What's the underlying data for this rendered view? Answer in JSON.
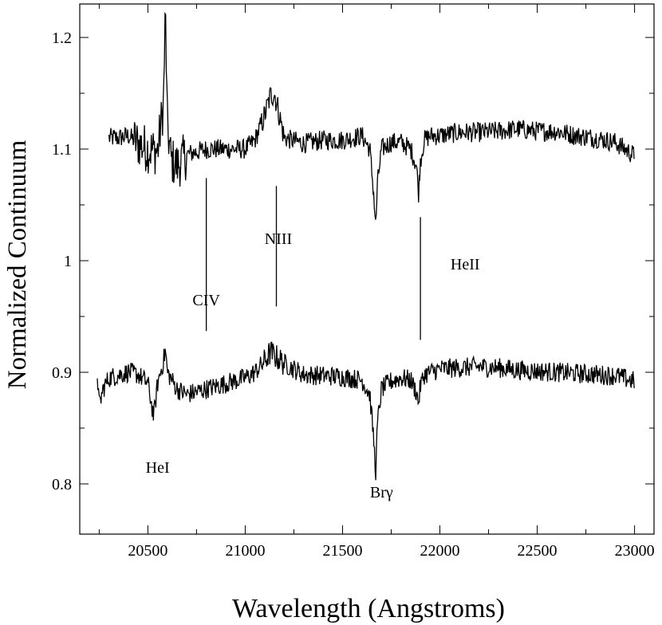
{
  "chart_data": {
    "type": "line",
    "xlabel": "Wavelength (Angstroms)",
    "ylabel": "Normalized Continuum",
    "xlim": [
      20150,
      23100
    ],
    "ylim": [
      0.755,
      1.23
    ],
    "xticks": [
      20500,
      21000,
      21500,
      22000,
      22500,
      23000
    ],
    "yticks": [
      0.8,
      0.9,
      1.0,
      1.1,
      1.2
    ],
    "ytick_labels": [
      "0.8",
      "0.9",
      "1",
      "1.1",
      "1.2"
    ],
    "grid": false,
    "legend": "none",
    "line_color": "#000000",
    "series": [
      {
        "baseline": 1.108,
        "x_range": [
          20300,
          23000
        ],
        "noise": 0.009,
        "x": [
          20300,
          20350,
          20400,
          20450,
          20500,
          20550,
          20580,
          20590,
          20600,
          20620,
          20650,
          20700,
          20800,
          20900,
          21000,
          21050,
          21100,
          21130,
          21150,
          21170,
          21200,
          21300,
          21400,
          21500,
          21600,
          21640,
          21660,
          21670,
          21680,
          21700,
          21750,
          21800,
          21850,
          21880,
          21890,
          21900,
          21920,
          21950,
          22000,
          22100,
          22200,
          22300,
          22400,
          22500,
          22600,
          22700,
          22800,
          22900,
          23000
        ],
        "y": [
          1.11,
          1.11,
          1.112,
          1.105,
          1.1,
          1.098,
          1.14,
          1.225,
          1.12,
          1.09,
          1.085,
          1.095,
          1.1,
          1.1,
          1.1,
          1.108,
          1.13,
          1.148,
          1.15,
          1.135,
          1.11,
          1.105,
          1.108,
          1.108,
          1.112,
          1.1,
          1.06,
          1.03,
          1.07,
          1.1,
          1.106,
          1.106,
          1.1,
          1.085,
          1.06,
          1.09,
          1.108,
          1.112,
          1.112,
          1.115,
          1.115,
          1.116,
          1.118,
          1.116,
          1.116,
          1.112,
          1.11,
          1.106,
          1.094
        ]
      },
      {
        "baseline": 0.898,
        "x_range": [
          20240,
          23000
        ],
        "noise": 0.009,
        "x": [
          20240,
          20250,
          20270,
          20300,
          20400,
          20450,
          20500,
          20530,
          20550,
          20580,
          20590,
          20600,
          20650,
          20700,
          20800,
          20900,
          21000,
          21050,
          21100,
          21130,
          21150,
          21200,
          21300,
          21400,
          21500,
          21600,
          21640,
          21660,
          21670,
          21680,
          21700,
          21750,
          21800,
          21850,
          21880,
          21890,
          21900,
          21920,
          21950,
          22000,
          22100,
          22200,
          22300,
          22400,
          22500,
          22600,
          22700,
          22800,
          22900,
          23000
        ],
        "y": [
          0.9,
          0.87,
          0.885,
          0.895,
          0.9,
          0.898,
          0.89,
          0.86,
          0.89,
          0.91,
          0.92,
          0.9,
          0.885,
          0.88,
          0.885,
          0.89,
          0.895,
          0.9,
          0.91,
          0.918,
          0.915,
          0.908,
          0.898,
          0.897,
          0.896,
          0.893,
          0.88,
          0.84,
          0.81,
          0.855,
          0.885,
          0.892,
          0.895,
          0.893,
          0.882,
          0.872,
          0.888,
          0.898,
          0.9,
          0.903,
          0.904,
          0.905,
          0.904,
          0.902,
          0.901,
          0.9,
          0.899,
          0.898,
          0.897,
          0.892
        ]
      }
    ],
    "annotations": [
      {
        "text": "HeI",
        "x": 20550,
        "y": 0.81
      },
      {
        "text": "CIV",
        "x": 20800,
        "y": 0.96
      },
      {
        "text": "NIII",
        "x": 21170,
        "y": 1.015
      },
      {
        "text": "HeII",
        "x": 22130,
        "y": 0.992
      },
      {
        "text": "Brγ",
        "x": 21700,
        "y": 0.788
      }
    ],
    "marker_lines": [
      {
        "x": 20800,
        "y": [
          0.937,
          1.074
        ]
      },
      {
        "x": 21160,
        "y": [
          0.959,
          1.067
        ]
      },
      {
        "x": 21900,
        "y": [
          0.929,
          1.039
        ]
      }
    ]
  }
}
